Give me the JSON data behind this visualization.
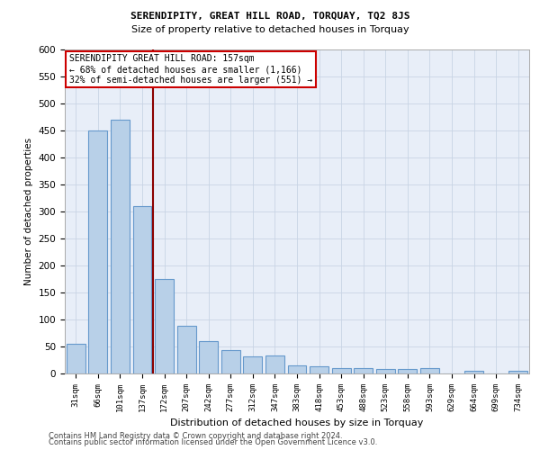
{
  "title1": "SERENDIPITY, GREAT HILL ROAD, TORQUAY, TQ2 8JS",
  "title2": "Size of property relative to detached houses in Torquay",
  "xlabel": "Distribution of detached houses by size in Torquay",
  "ylabel": "Number of detached properties",
  "categories": [
    "31sqm",
    "66sqm",
    "101sqm",
    "137sqm",
    "172sqm",
    "207sqm",
    "242sqm",
    "277sqm",
    "312sqm",
    "347sqm",
    "383sqm",
    "418sqm",
    "453sqm",
    "488sqm",
    "523sqm",
    "558sqm",
    "593sqm",
    "629sqm",
    "664sqm",
    "699sqm",
    "734sqm"
  ],
  "values": [
    55,
    450,
    470,
    310,
    175,
    88,
    60,
    43,
    32,
    34,
    15,
    14,
    10,
    10,
    8,
    8,
    10,
    0,
    5,
    0,
    5
  ],
  "bar_color": "#b8d0e8",
  "bar_edge_color": "#6699cc",
  "annotation_box_text": "SERENDIPITY GREAT HILL ROAD: 157sqm\n← 68% of detached houses are smaller (1,166)\n32% of semi-detached houses are larger (551) →",
  "annotation_box_color": "white",
  "annotation_box_edge_color": "#cc0000",
  "vline_x": 3.5,
  "vline_color": "#8b0000",
  "ylim": [
    0,
    600
  ],
  "yticks": [
    0,
    50,
    100,
    150,
    200,
    250,
    300,
    350,
    400,
    450,
    500,
    550,
    600
  ],
  "grid_color": "#c8d4e4",
  "background_color": "#e8eef8",
  "footer1": "Contains HM Land Registry data © Crown copyright and database right 2024.",
  "footer2": "Contains public sector information licensed under the Open Government Licence v3.0."
}
